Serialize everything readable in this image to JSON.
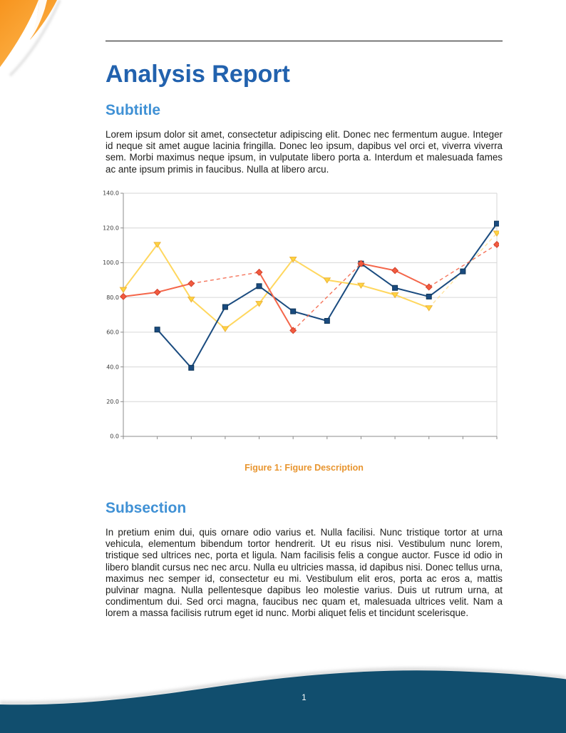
{
  "header": {
    "title": "Analysis Report",
    "subtitle": "Subtitle"
  },
  "intro": {
    "text": "Lorem ipsum dolor sit amet, consectetur adipiscing elit.  Donec nec fermentum augue.  Integer id neque sit amet augue lacinia fringilla.  Donec leo ipsum, dapibus vel orci et, viverra viverra sem.  Morbi maximus neque ipsum, in vulputate libero porta a.  Interdum et malesuada fames ac ante ipsum primis in faucibus. Nulla at libero arcu."
  },
  "figure": {
    "caption": "Figure 1: Figure Description"
  },
  "subsection": {
    "title": "Subsection",
    "text": "In pretium enim dui, quis ornare odio varius et.  Nulla facilisi.  Nunc tristique tortor at urna vehicula, elementum bibendum tortor hendrerit.  Ut eu risus nisi.  Vestibulum nunc lorem, tristique sed ultrices nec, porta et ligula.  Nam facilisis felis a congue auctor.  Fusce id odio in libero blandit cursus nec nec arcu.  Nulla eu ultricies massa, id dapibus nisi.  Donec tellus urna, maximus nec semper id, consectetur eu mi.  Vestibulum elit eros, porta ac eros a, mattis pulvinar magna.  Nulla pellentesque dapibus leo molestie varius.  Duis ut rutrum urna, at condimentum dui.  Sed orci magna, faucibus nec quam et, malesuada ultrices velit.  Nam a lorem a massa facilisis rutrum eget id nunc.  Morbi aliquet felis et tincidunt scelerisque."
  },
  "footer": {
    "page_number": "1"
  },
  "colors": {
    "title_blue": "#2262ae",
    "heading_blue": "#4091d5",
    "caption_orange": "#e8952f",
    "footer_navy": "#114e6e",
    "corner_orange_dark": "#f7941e",
    "corner_orange_light": "#fcb045"
  },
  "chart_data": {
    "type": "line",
    "title": "",
    "xlabel": "",
    "ylabel": "",
    "x": [
      1,
      2,
      3,
      4,
      5,
      6,
      7,
      8,
      9,
      10,
      11,
      12
    ],
    "x_tick_labels": [
      "",
      "",
      "",
      "",
      "",
      "",
      "",
      "",
      "",
      "",
      "",
      ""
    ],
    "ylim": [
      0,
      140
    ],
    "y_ticks": [
      0,
      20,
      40,
      60,
      80,
      100,
      120,
      140
    ],
    "y_tick_labels": [
      "0.0",
      "20.0",
      "40.0",
      "60.0",
      "80.0",
      "100.0",
      "120.0",
      "140.0"
    ],
    "grid": true,
    "legend_position": "none",
    "note": "null values are missing data points; gaps are bridged with dashed segments",
    "series": [
      {
        "name": "yellow-series",
        "marker": "triangle-down",
        "color": "#ffd75e",
        "marker_fill": "#ffd43f",
        "marker_stroke": "#ecb33c",
        "gap_color": "#ffe196",
        "values": [
          84.5,
          110.5,
          79,
          62,
          76.5,
          102,
          90,
          87,
          81.5,
          74,
          null,
          117
        ]
      },
      {
        "name": "blue-series",
        "marker": "square",
        "color": "#1a4b7f",
        "marker_fill": "#1a4b7f",
        "marker_stroke": "#0e3557",
        "gap_color": "#1a4b7f",
        "values": [
          null,
          61.5,
          39.5,
          74.5,
          86.5,
          72,
          66.5,
          99.5,
          85.5,
          80.5,
          95,
          122.5
        ]
      },
      {
        "name": "red-series",
        "marker": "diamond",
        "color": "#f4664a",
        "marker_fill": "#f25b3f",
        "marker_stroke": "#d2432e",
        "gap_color": "#f4664a",
        "values": [
          80.5,
          83,
          88,
          null,
          94.5,
          61,
          null,
          99.5,
          95.5,
          86,
          null,
          110.5
        ]
      }
    ]
  }
}
